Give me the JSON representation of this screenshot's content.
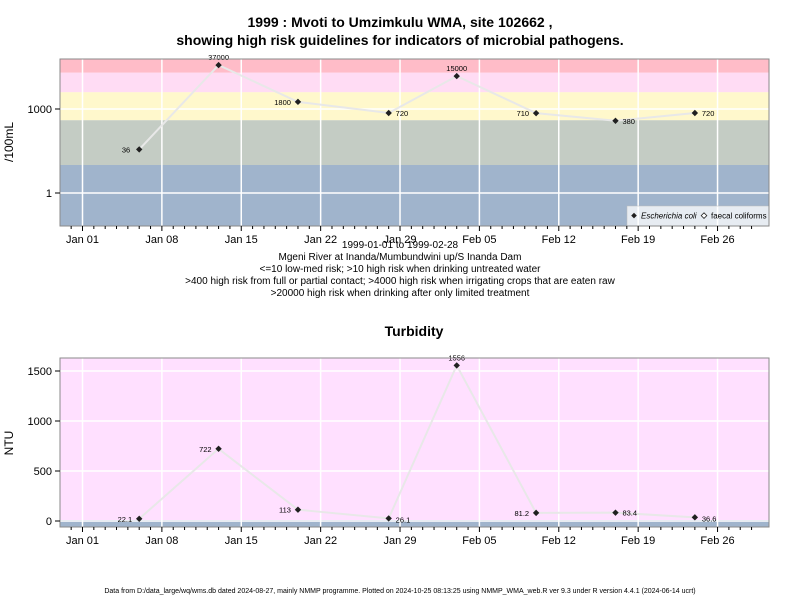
{
  "title": {
    "line1": "1999 : Mvoti to Umzimkulu WMA, site 102662 ,",
    "line2": "showing high risk guidelines for indicators of microbial pathogens."
  },
  "caption": {
    "date_range": "1999-01-01 to 1999-02-28",
    "site": "Mgeni River at Inanda/Mumbundwini up/S Inanda Dam",
    "line1": "<=10 low-med risk; >10 high risk when drinking untreated water",
    "line2": ">400 high risk from full or partial contact; >4000 high risk when irrigating crops that are eaten raw",
    "line3": ">20000 high risk when drinking after only limited treatment"
  },
  "footer": "Data from D:/data_large/wq/wms.db dated 2024-08-27, mainly NMMP programme. Plotted on 2024-10-25 08:13:25 using NMMP_WMA_web.R ver 9.3 under R version 4.4.1 (2024-06-14 ucrt)",
  "colors": {
    "band_low": "#a0b4cc",
    "band_medium": "#c4ccc4",
    "band_high1": "#fff8cc",
    "band_high2": "#ffdcf4",
    "band_high3": "#ffbcc8",
    "turbidity_bg": "#ffe0ff",
    "turbidity_base": "#a0b4cc",
    "line": "#e8e8e8",
    "grid": "#ffffff",
    "point": "#202020"
  },
  "chart_data": [
    {
      "type": "line",
      "title": "",
      "xlabel": "",
      "ylabel": "/100mL",
      "y_scale": "log",
      "x_ticks": [
        "Jan 01",
        "Jan 08",
        "Jan 15",
        "Jan 22",
        "Jan 29",
        "Feb 05",
        "Feb 12",
        "Feb 19",
        "Feb 26"
      ],
      "y_ticks": [
        "1",
        "1000"
      ],
      "legend_position": "bottom-right",
      "risk_thresholds": [
        10,
        400,
        4000,
        20000
      ],
      "series": [
        {
          "name": "Escherichia coli",
          "marker": "filled-diamond",
          "points": [
            {
              "x": "1999-01-06",
              "y": 36,
              "label": "36"
            },
            {
              "x": "1999-01-13",
              "y": 37000,
              "label": "37000"
            },
            {
              "x": "1999-01-20",
              "y": 1800,
              "label": "1800"
            },
            {
              "x": "1999-01-28",
              "y": 720,
              "label": "720"
            },
            {
              "x": "1999-02-03",
              "y": 15000,
              "label": "15000"
            },
            {
              "x": "1999-02-10",
              "y": 710,
              "label": "710"
            },
            {
              "x": "1999-02-17",
              "y": 380,
              "label": "380"
            },
            {
              "x": "1999-02-24",
              "y": 720,
              "label": "720"
            }
          ]
        },
        {
          "name": "faecal coliforms",
          "marker": "open-diamond",
          "points": []
        }
      ]
    },
    {
      "type": "line",
      "title": "Turbidity",
      "xlabel": "",
      "ylabel": "NTU",
      "ylim": [
        0,
        1600
      ],
      "y_ticks": [
        "0",
        "500",
        "1000",
        "1500"
      ],
      "x_ticks": [
        "Jan 01",
        "Jan 08",
        "Jan 15",
        "Jan 22",
        "Jan 29",
        "Feb 05",
        "Feb 12",
        "Feb 19",
        "Feb 26"
      ],
      "series": [
        {
          "name": "",
          "points": [
            {
              "x": "1999-01-06",
              "y": 22.1,
              "label": "22.1"
            },
            {
              "x": "1999-01-13",
              "y": 722,
              "label": "722"
            },
            {
              "x": "1999-01-20",
              "y": 113,
              "label": "113"
            },
            {
              "x": "1999-01-28",
              "y": 26.1,
              "label": "26.1"
            },
            {
              "x": "1999-02-03",
              "y": 1556,
              "label": "1556"
            },
            {
              "x": "1999-02-10",
              "y": 81.2,
              "label": "81.2"
            },
            {
              "x": "1999-02-17",
              "y": 83.4,
              "label": "83.4"
            },
            {
              "x": "1999-02-24",
              "y": 36.6,
              "label": "36.6"
            }
          ]
        }
      ]
    }
  ]
}
